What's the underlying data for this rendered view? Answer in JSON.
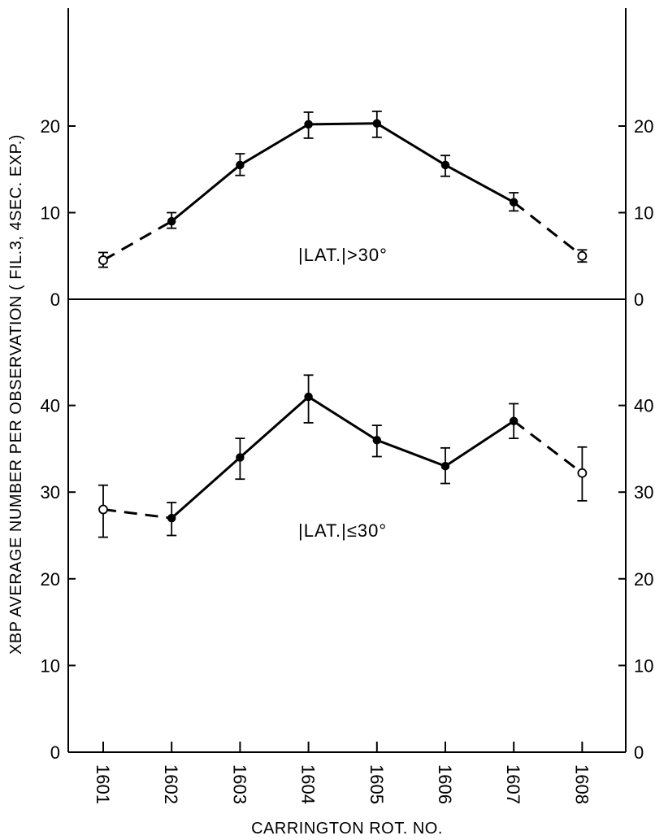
{
  "chart_data": [
    {
      "type": "line",
      "panel": "upper",
      "annotation": "|LAT.|>30°",
      "categories": [
        "1601",
        "1602",
        "1603",
        "1604",
        "1605",
        "1606",
        "1607",
        "1608"
      ],
      "values": [
        4.5,
        9,
        15.5,
        20.2,
        20.3,
        15.5,
        11.2,
        5
      ],
      "error_low": [
        3.7,
        8.2,
        14.3,
        18.6,
        18.7,
        14.2,
        10.2,
        4.3
      ],
      "error_high": [
        5.4,
        10,
        16.8,
        21.6,
        21.7,
        16.6,
        12.3,
        5.7
      ],
      "open_points": [
        0,
        7
      ],
      "dashed_segments": [
        0,
        6
      ],
      "ylim": [
        0,
        30
      ],
      "yticks": [
        "0",
        "10",
        "20"
      ],
      "grid": false
    },
    {
      "type": "line",
      "panel": "lower",
      "annotation": "|LAT.|≤30°",
      "categories": [
        "1601",
        "1602",
        "1603",
        "1604",
        "1605",
        "1606",
        "1607",
        "1608"
      ],
      "values": [
        28,
        27,
        34,
        41,
        36,
        33,
        38.2,
        32.2
      ],
      "error_low": [
        24.8,
        25,
        31.5,
        38,
        34.1,
        31,
        36.2,
        29
      ],
      "error_high": [
        30.8,
        28.8,
        36.2,
        43.5,
        37.7,
        35.1,
        40.2,
        35.2
      ],
      "open_points": [
        0,
        7
      ],
      "dashed_segments": [
        0,
        6
      ],
      "ylim": [
        0,
        50
      ],
      "yticks": [
        "0",
        "10",
        "20",
        "30",
        "40"
      ],
      "grid": false
    }
  ],
  "axes": {
    "ylabel": "XBP AVERAGE NUMBER PER OBSERVATION ( FIL.3, 4SEC. EXP.)",
    "xlabel": "CARRINGTON ROT. NO."
  }
}
